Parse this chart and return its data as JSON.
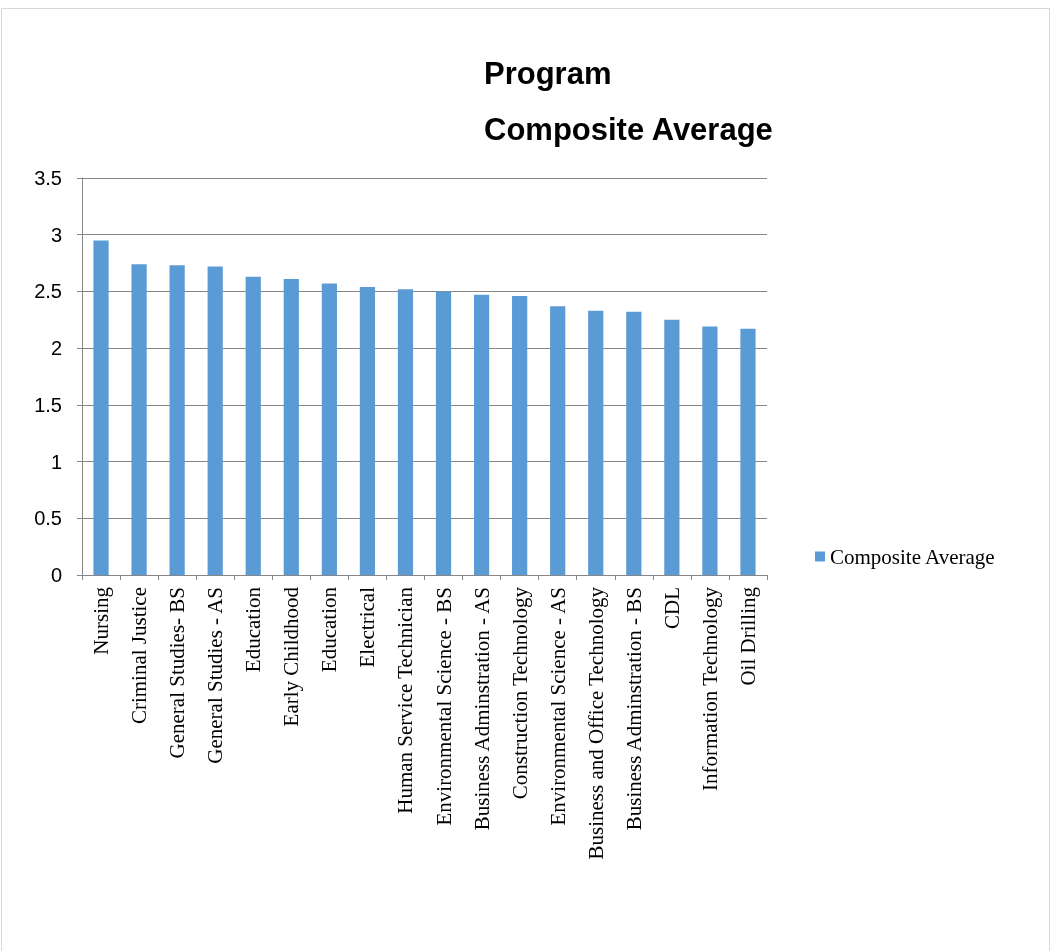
{
  "chart_data": {
    "type": "bar",
    "title": "Program\nComposite Average",
    "categories": [
      "Nursing",
      "Criminal Justice",
      "General Studies- BS",
      "General Studies - AS",
      "Education",
      "Early Childhood",
      "Education",
      "Electrical",
      "Human Service Technician",
      "Environmental Science - BS",
      "Business Adminstration - AS",
      "Construction Technology",
      "Environmental Science - AS",
      "Business and Office Technology",
      "Business Adminstration - BS",
      "CDL",
      "Information Technology",
      "Oil Drilling"
    ],
    "series": [
      {
        "name": "Composite Average",
        "color": "#5b9bd5",
        "values": [
          2.95,
          2.74,
          2.73,
          2.72,
          2.63,
          2.61,
          2.57,
          2.54,
          2.52,
          2.5,
          2.47,
          2.46,
          2.37,
          2.33,
          2.32,
          2.25,
          2.19,
          2.17
        ]
      }
    ],
    "ylim": [
      0,
      3.5
    ],
    "yticks": [
      0,
      0.5,
      1,
      1.5,
      2,
      2.5,
      3,
      3.5
    ],
    "grid": "y",
    "legend": "right"
  }
}
